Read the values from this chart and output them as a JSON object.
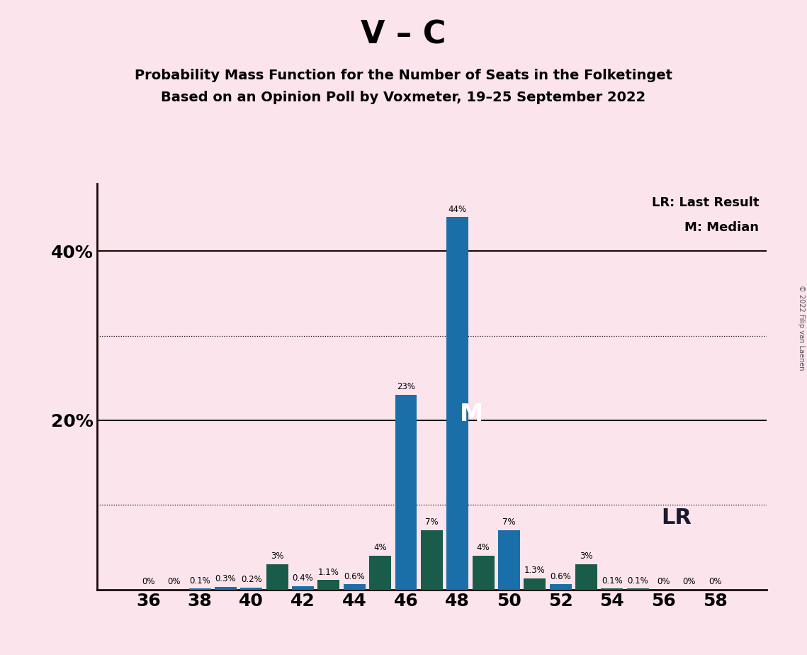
{
  "title_main": "V – C",
  "title_sub1": "Probability Mass Function for the Number of Seats in the Folketinget",
  "title_sub2": "Based on an Opinion Poll by Voxmeter, 19–25 September 2022",
  "copyright_text": "© 2022 Filip van Laenen",
  "background_color": "#fce4ec",
  "seats": [
    36,
    37,
    38,
    39,
    40,
    41,
    42,
    43,
    44,
    45,
    46,
    47,
    48,
    49,
    50,
    51,
    52,
    53,
    54,
    55,
    56,
    57,
    58
  ],
  "values": [
    0.0,
    0.0,
    0.1,
    0.3,
    0.2,
    3.0,
    0.4,
    1.1,
    0.6,
    4.0,
    23.0,
    7.0,
    44.0,
    4.0,
    7.0,
    1.3,
    0.6,
    3.0,
    0.1,
    0.1,
    0.0,
    0.0,
    0.0
  ],
  "labels": [
    "0%",
    "0%",
    "0.1%",
    "0.3%",
    "0.2%",
    "3%",
    "0.4%",
    "1.1%",
    "0.6%",
    "4%",
    "23%",
    "7%",
    "44%",
    "4%",
    "7%",
    "1.3%",
    "0.6%",
    "3%",
    "0.1%",
    "0.1%",
    "0%",
    "0%",
    "0%"
  ],
  "color_blue": "#1b6fa8",
  "color_teal": "#1a5c4a",
  "median_seat": 48,
  "lr_seat": 48,
  "ylim": [
    0,
    48
  ],
  "legend_lr": "LR: Last Result",
  "legend_m": "M: Median",
  "lr_label": "LR",
  "m_label": "M",
  "solid_grid": [
    20,
    40
  ],
  "dotted_grid": [
    10,
    30
  ],
  "ytick_labeled": [
    20,
    40
  ],
  "ytick_label_texts": [
    "20%",
    "40%"
  ],
  "xtick_values": [
    36,
    38,
    40,
    42,
    44,
    46,
    48,
    50,
    52,
    54,
    56,
    58
  ],
  "xtick_labels": [
    "36",
    "38",
    "40",
    "42",
    "44",
    "46",
    "48",
    "50",
    "52",
    "54",
    "56",
    "58"
  ]
}
